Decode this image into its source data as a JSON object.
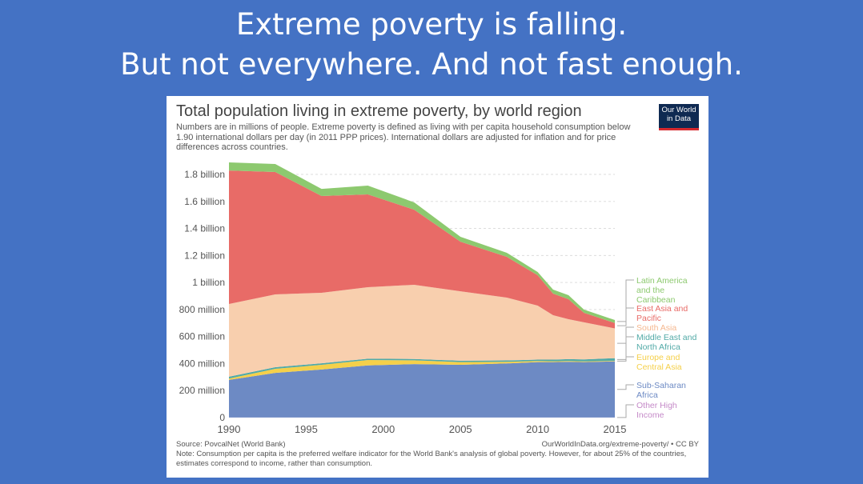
{
  "slide": {
    "title_line1": "Extreme poverty is falling.",
    "title_line2": "But not everywhere. And not fast enough."
  },
  "card": {
    "logo": "Our World in Data",
    "source": "Source: PovcalNet (World Bank)",
    "url": "OurWorldInData.org/extreme-poverty/ • CC BY",
    "note": "Note: Consumption per capita is the preferred welfare indicator for the World Bank's analysis of global poverty. However, for about 25% of the countries, estimates correspond to income, rather than consumption."
  },
  "chart_data": {
    "type": "area",
    "stacked": true,
    "title": "Total population living in extreme poverty, by world region",
    "subtitle": "Numbers are in millions of people. Extreme poverty is defined as living with per capita household consumption below 1.90 international dollars per day (in 2011 PPP prices). International dollars are adjusted for inflation and for price differences across countries.",
    "x": [
      1990,
      1993,
      1996,
      1999,
      2002,
      2005,
      2008,
      2010,
      2011,
      2012,
      2013,
      2015
    ],
    "xticks": [
      "1990",
      "1995",
      "2000",
      "2005",
      "2010",
      "2015"
    ],
    "yticks": [
      "0",
      "200 million",
      "400 million",
      "600 million",
      "800 million",
      "1 billion",
      "1.2 billion",
      "1.4 billion",
      "1.6 billion",
      "1.8 billion"
    ],
    "ylim": [
      0,
      1800
    ],
    "grid": true,
    "legend": "right",
    "series": [
      {
        "name": "Other High Income",
        "color": "#c58ac8",
        "values": [
          1,
          1,
          1,
          1,
          1,
          1,
          1,
          1,
          1,
          1,
          1,
          1
        ]
      },
      {
        "name": "Sub-Saharan Africa",
        "color": "#6d8ac4",
        "values": [
          278,
          330,
          355,
          385,
          395,
          390,
          400,
          410,
          410,
          412,
          410,
          415
        ]
      },
      {
        "name": "Europe and Central Asia",
        "color": "#f5d04a",
        "values": [
          10,
          30,
          35,
          40,
          28,
          20,
          12,
          8,
          6,
          6,
          5,
          4
        ]
      },
      {
        "name": "Middle East and North Africa",
        "color": "#52aaa7",
        "values": [
          14,
          12,
          11,
          10,
          10,
          10,
          10,
          10,
          12,
          14,
          15,
          20
        ]
      },
      {
        "name": "South Asia",
        "color": "#f8cfae",
        "values": [
          538,
          539,
          522,
          529,
          549,
          514,
          465,
          400,
          329,
          295,
          274,
          220
        ]
      },
      {
        "name": "East Asia and Pacific",
        "color": "#e86b67",
        "values": [
          988,
          906,
          716,
          687,
          556,
          367,
          302,
          225,
          160,
          148,
          71,
          40
        ]
      },
      {
        "name": "Latin America and the Caribbean",
        "color": "#8dc96f",
        "values": [
          60,
          59,
          53,
          65,
          54,
          36,
          30,
          24,
          29,
          30,
          23,
          22
        ]
      }
    ]
  }
}
